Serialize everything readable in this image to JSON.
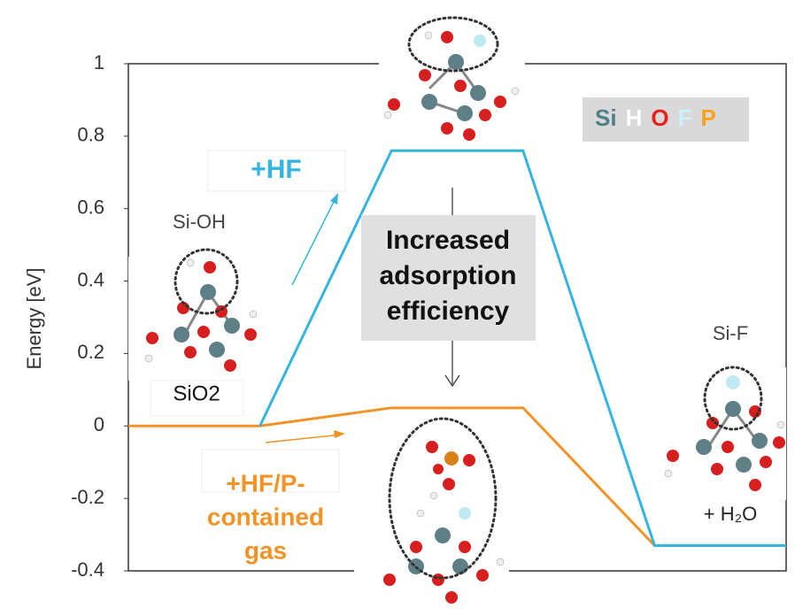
{
  "chart_data": {
    "type": "line",
    "y_label": "Energy [eV]",
    "categories": [
      null,
      null,
      null,
      null,
      null,
      null
    ],
    "series": [
      {
        "name": "+HF",
        "color": "#33b5e0",
        "values": [
          null,
          0,
          0.76,
          0.76,
          -0.33,
          -0.33
        ]
      },
      {
        "name": "+HF/P-contained gas",
        "color": "#f39325",
        "values": [
          0,
          0,
          0.05,
          0.05,
          -0.33,
          -0.33
        ]
      }
    ],
    "ylim": [
      -0.4,
      1
    ],
    "yticks": [
      1,
      0.8,
      0.6,
      0.4,
      0.2,
      0,
      -0.2,
      -0.4
    ],
    "annotations": {
      "hf": "+HF",
      "sioh": "Si-OH",
      "sio2": "SiO2",
      "efficiency": [
        "Increased",
        "adsorption",
        "efficiency"
      ],
      "hfp": [
        "+HF/P-",
        "contained",
        "gas"
      ],
      "sif": "Si-F",
      "water": "+ H₂O"
    },
    "elements": [
      {
        "symbol": "Si",
        "color": "#4f8088"
      },
      {
        "symbol": "H",
        "color": "#ffffff"
      },
      {
        "symbol": "O",
        "color": "#e8201e"
      },
      {
        "symbol": "F",
        "color": "#c9f2fb"
      },
      {
        "symbol": "P",
        "color": "#f5a31a"
      }
    ]
  }
}
